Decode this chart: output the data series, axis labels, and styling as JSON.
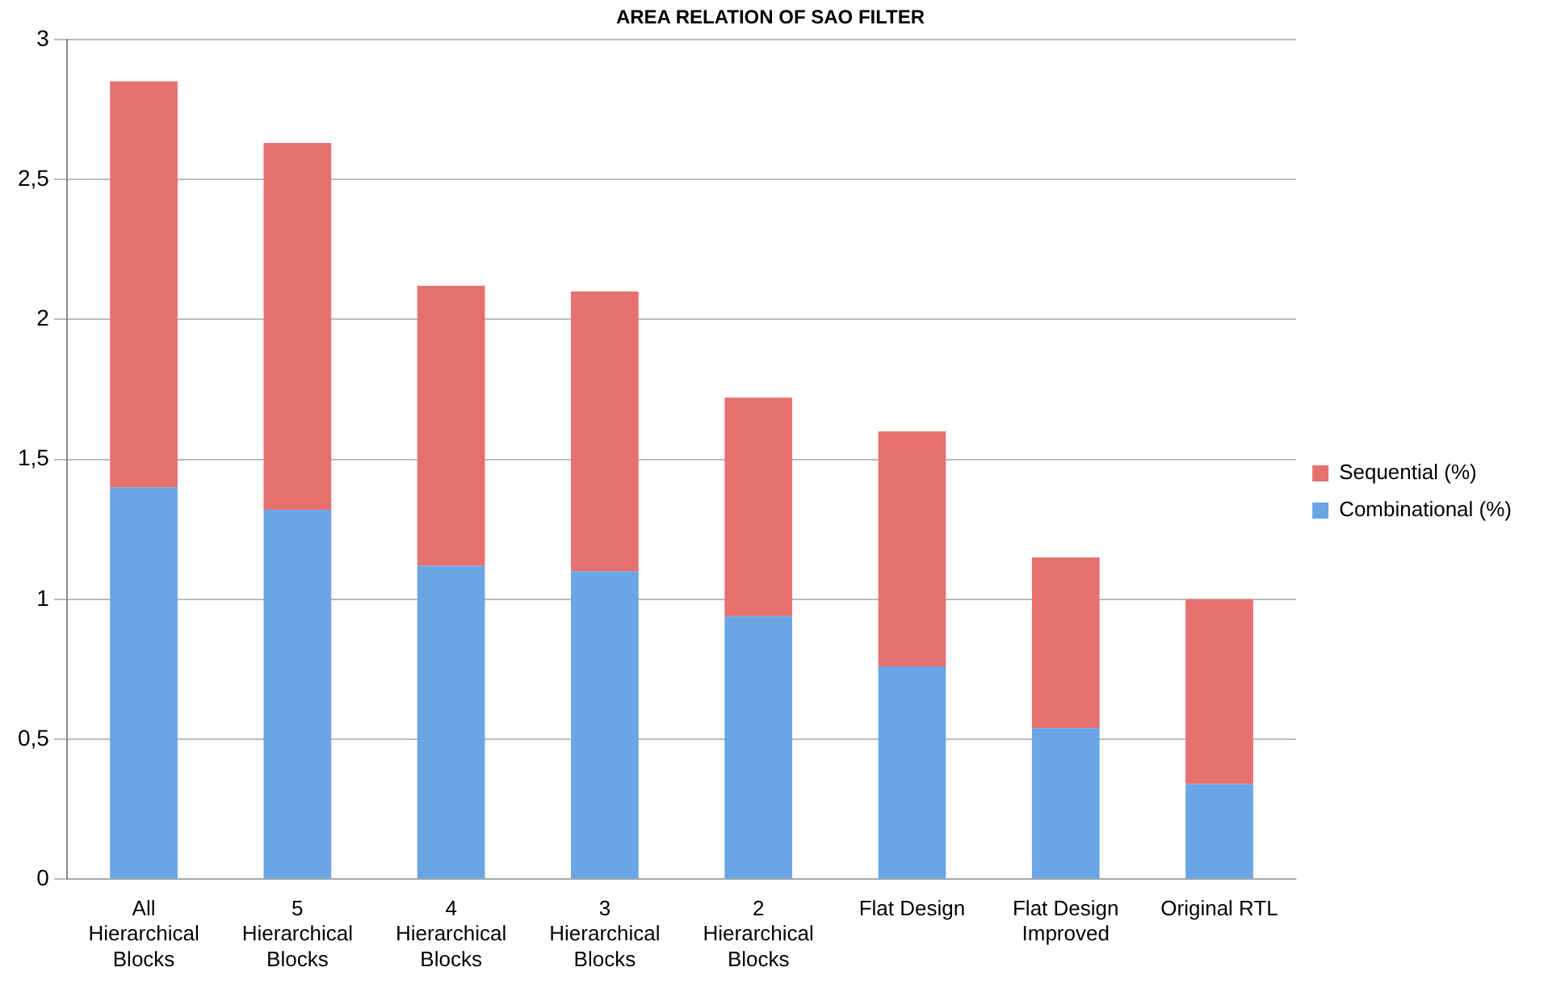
{
  "chart_data": {
    "type": "bar",
    "title": "AREA RELATION OF SAO FILTER",
    "stacked": true,
    "categories": [
      "All Hierarchical Blocks",
      "5 Hierarchical Blocks",
      "4 Hierarchical Blocks",
      "3 Hierarchical Blocks",
      "2 Hierarchical Blocks",
      "Flat Design",
      "Flat Design Improved",
      "Original RTL"
    ],
    "series": [
      {
        "name": "Combinational (%)",
        "color": "#6aa6e6",
        "values": [
          1.4,
          1.32,
          1.12,
          1.1,
          0.94,
          0.76,
          0.54,
          0.34
        ]
      },
      {
        "name": "Sequential (%)",
        "color": "#e6706e",
        "values": [
          1.45,
          1.31,
          1.0,
          1.0,
          0.78,
          0.84,
          0.61,
          0.66
        ]
      }
    ],
    "ylim": [
      0,
      3
    ],
    "yticks": [
      0,
      {
        "value": 0.5,
        "label": "0,5"
      },
      1,
      {
        "value": 1.5,
        "label": "1,5"
      },
      2,
      {
        "value": 2.5,
        "label": "2,5"
      },
      3
    ],
    "grid": "y",
    "legend": "right"
  }
}
